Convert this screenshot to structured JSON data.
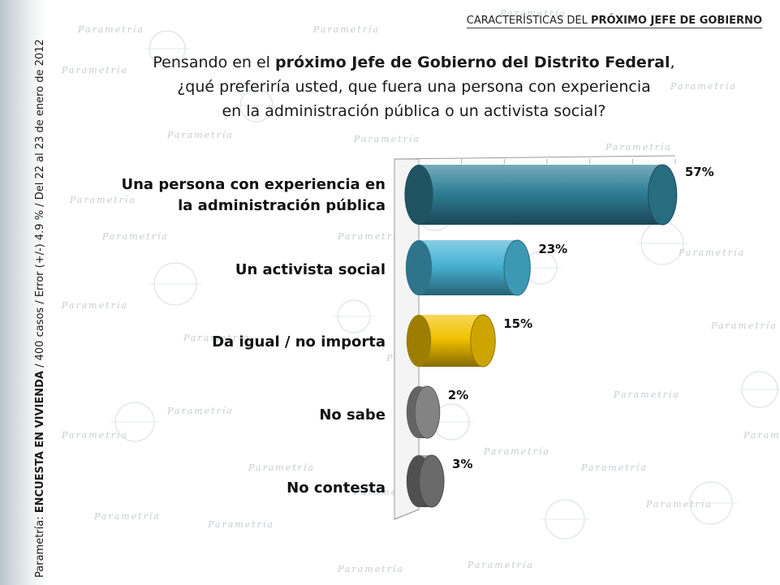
{
  "header": {
    "title_prefix": "CARACTERÍSTICAS DEL ",
    "title_bold": "PRÓXIMO JEFE DE GOBIERNO"
  },
  "question": {
    "line1_prefix": "Pensando en el ",
    "line1_bold": "próximo Jefe de Gobierno del Distrito Federal",
    "line1_suffix": ",",
    "line2": "¿qué preferiría usted, que fuera una persona con experiencia",
    "line3": "en la administración pública o un activista social?"
  },
  "sidebar": {
    "prefix": "Parametría: ",
    "bold": "ENCUESTA EN VIVIENDA",
    "suffix": " / 400 casos / Error (+/-) 4.9 % / Del 22 al 23 de enero de 2012"
  },
  "watermark": {
    "text": "Parametría"
  },
  "chart_data": {
    "type": "bar",
    "orientation": "horizontal",
    "categories": [
      "Una persona con experiencia en la administración pública",
      "Un activista social",
      "Da igual / no importa",
      "No sabe",
      "No contesta"
    ],
    "values": [
      57,
      23,
      15,
      2,
      3
    ],
    "value_labels": [
      "57%",
      "23%",
      "15%",
      "2%",
      "3%"
    ],
    "xlim": [
      0,
      60
    ],
    "colors": [
      "#2f7f97",
      "#47b3d4",
      "#f2c200",
      "#9a9a9a",
      "#7b7b7b"
    ],
    "title": "",
    "xlabel": "",
    "ylabel": ""
  }
}
